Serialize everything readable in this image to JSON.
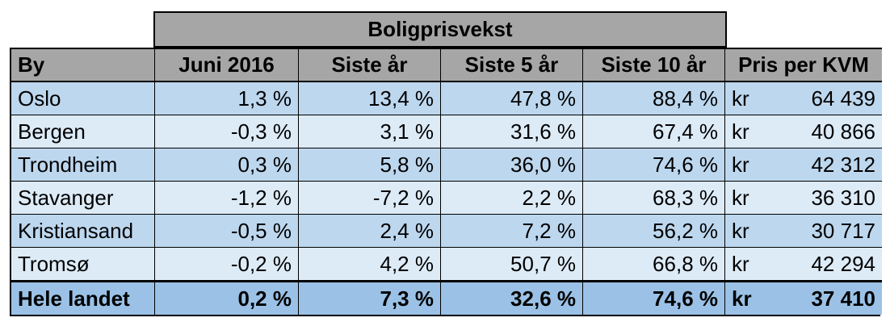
{
  "table": {
    "group_header": "Boligprisvekst",
    "columns": [
      "By",
      "Juni 2016",
      "Siste år",
      "Siste 5 år",
      "Siste 10 år",
      "Pris per KVM"
    ],
    "rows": [
      {
        "city": "Oslo",
        "june": "1,3 %",
        "year": "13,4 %",
        "five": "47,8 %",
        "ten": "88,4 %",
        "cur": "kr",
        "price": "64 439"
      },
      {
        "city": "Bergen",
        "june": "-0,3 %",
        "year": "3,1 %",
        "five": "31,6 %",
        "ten": "67,4 %",
        "cur": "kr",
        "price": "40 866"
      },
      {
        "city": "Trondheim",
        "june": "0,3 %",
        "year": "5,8 %",
        "five": "36,0 %",
        "ten": "74,6 %",
        "cur": "kr",
        "price": "42 312"
      },
      {
        "city": "Stavanger",
        "june": "-1,2 %",
        "year": "-7,2 %",
        "five": "2,2 %",
        "ten": "68,3 %",
        "cur": "kr",
        "price": "36 310"
      },
      {
        "city": "Kristiansand",
        "june": "-0,5 %",
        "year": "2,4 %",
        "five": "7,2 %",
        "ten": "56,2 %",
        "cur": "kr",
        "price": "30 717"
      },
      {
        "city": "Tromsø",
        "june": "-0,2 %",
        "year": "4,2 %",
        "five": "50,7 %",
        "ten": "66,8 %",
        "cur": "kr",
        "price": "42 294"
      }
    ],
    "total": {
      "city": "Hele landet",
      "june": "0,2 %",
      "year": "7,3 %",
      "five": "32,6 %",
      "ten": "74,6 %",
      "cur": "kr",
      "price": "37 410"
    }
  },
  "colors": {
    "header_gray": "#a6a6a6",
    "row_dark": "#bdd7ee",
    "row_light": "#ddebf7",
    "total_row": "#9bc2e6"
  }
}
